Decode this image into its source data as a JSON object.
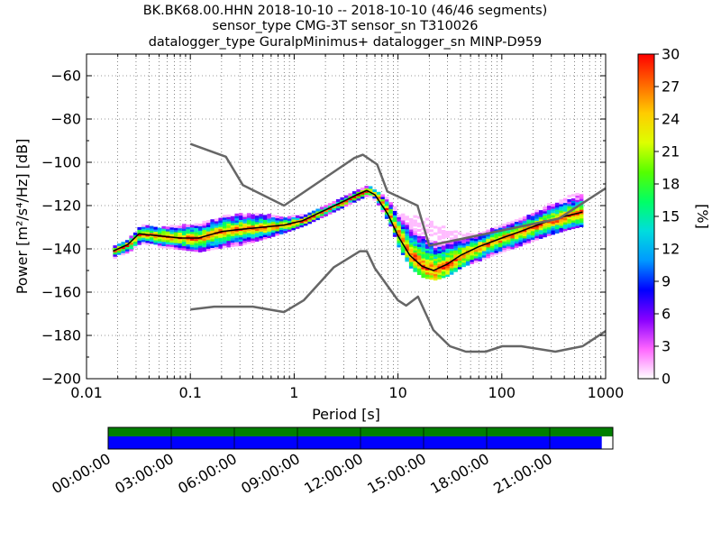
{
  "chart_data": {
    "type": "heatmap",
    "title": [
      "BK.BK68.00.HHN   2018-10-10 -- 2018-10-10  (46/46 segments)",
      "sensor_type CMG-3T sensor_sn T310026",
      "datalogger_type GuralpMinimus+ datalogger_sn MINP-D959"
    ],
    "xlabel": "Period [s]",
    "ylabel": "Power [m²/s⁴/Hz] [dB]",
    "xscale": "log",
    "xlim": [
      0.01,
      1000
    ],
    "ylim": [
      -200,
      -50
    ],
    "x_ticks": [
      0.01,
      0.1,
      1,
      10,
      100,
      1000
    ],
    "x_tick_labels": [
      "0.01",
      "0.1",
      "1",
      "10",
      "100",
      "1000"
    ],
    "y_ticks": [
      -200,
      -180,
      -160,
      -140,
      -120,
      -100,
      -80,
      -60
    ],
    "y_tick_labels": [
      "−200",
      "−180",
      "−160",
      "−140",
      "−120",
      "−100",
      "−80",
      "−60"
    ],
    "grid": true,
    "colorbar": {
      "label": "[%]",
      "range": [
        0,
        30
      ],
      "ticks": [
        "0",
        "3",
        "6",
        "9",
        "12",
        "15",
        "18",
        "21",
        "24",
        "27",
        "30"
      ],
      "colormap": [
        "#ffffff",
        "#ff66ff",
        "#8800ff",
        "#0000ff",
        "#0099ff",
        "#00dddd",
        "#00ff66",
        "#55ff00",
        "#ddff00",
        "#ffcc00",
        "#ff6600",
        "#ff0000"
      ]
    },
    "series": [
      {
        "role": "mean",
        "color": "#000000",
        "x": [
          0.018,
          0.025,
          0.032,
          0.05,
          0.08,
          0.12,
          0.2,
          0.3,
          0.5,
          0.8,
          1.2,
          2,
          3,
          4,
          5,
          6,
          8,
          10,
          13,
          17,
          22,
          30,
          40,
          60,
          100,
          150,
          250,
          400,
          600
        ],
        "y": [
          -141,
          -138,
          -133,
          -134,
          -135,
          -135,
          -132,
          -131,
          -130,
          -129,
          -127,
          -122,
          -118,
          -115,
          -113,
          -115,
          -124,
          -134,
          -143,
          -148,
          -150,
          -147,
          -143,
          -139,
          -135,
          -132,
          -128,
          -125,
          -123
        ]
      },
      {
        "role": "noise-model-high",
        "color": "#666666",
        "x": [
          0.1,
          0.22,
          0.32,
          0.8,
          3.8,
          4.6,
          6.3,
          7.9,
          15.4,
          20,
          354.8,
          1000
        ],
        "y": [
          -91.5,
          -97.4,
          -110.5,
          -120,
          -98,
          -96.5,
          -101,
          -113.5,
          -120,
          -138.5,
          -126,
          -112
        ]
      },
      {
        "role": "noise-model-low",
        "color": "#666666",
        "x": [
          0.1,
          0.17,
          0.4,
          0.8,
          1.24,
          2.4,
          4.3,
          5,
          6,
          10,
          12,
          15.6,
          21.9,
          31.6,
          45,
          70,
          101,
          154,
          328,
          600,
          1000
        ],
        "y": [
          -168,
          -166.7,
          -166.7,
          -169.2,
          -163.7,
          -148.6,
          -141.1,
          -141.1,
          -149,
          -163.8,
          -166.2,
          -162.1,
          -177.5,
          -185,
          -187.5,
          -187.5,
          -185,
          -185,
          -187.5,
          -185,
          -178
        ]
      }
    ],
    "heatmap_band": {
      "x": [
        0.018,
        0.025,
        0.032,
        0.05,
        0.08,
        0.12,
        0.2,
        0.3,
        0.5,
        0.8,
        1.2,
        2,
        3,
        4,
        5,
        6,
        8,
        10,
        13,
        17,
        22,
        30,
        40,
        60,
        100,
        150,
        250,
        400,
        600
      ],
      "y_low": [
        -144,
        -141,
        -137,
        -139,
        -140,
        -141,
        -139,
        -138,
        -135,
        -132,
        -129,
        -124,
        -120,
        -117,
        -115,
        -118,
        -128,
        -140,
        -149,
        -153,
        -154,
        -152,
        -148,
        -145,
        -141,
        -138,
        -134,
        -131,
        -129
      ],
      "y_high": [
        -139,
        -135,
        -129,
        -130,
        -129,
        -128,
        -125,
        -124,
        -124,
        -125,
        -124,
        -120,
        -116,
        -113,
        -111,
        -113,
        -117,
        -124,
        -125,
        -125,
        -128,
        -131,
        -133,
        -133,
        -129,
        -126,
        -120,
        -116,
        -113
      ]
    }
  },
  "time_bar": {
    "tick_labels": [
      "00:00:00",
      "03:00:00",
      "06:00:00",
      "09:00:00",
      "12:00:00",
      "15:00:00",
      "18:00:00",
      "21:00:00"
    ],
    "coverage_top_fraction": 1.0,
    "coverage_bottom_fraction": 0.978,
    "colors": {
      "top": "#007f00",
      "bottom": "#0000ff"
    }
  }
}
